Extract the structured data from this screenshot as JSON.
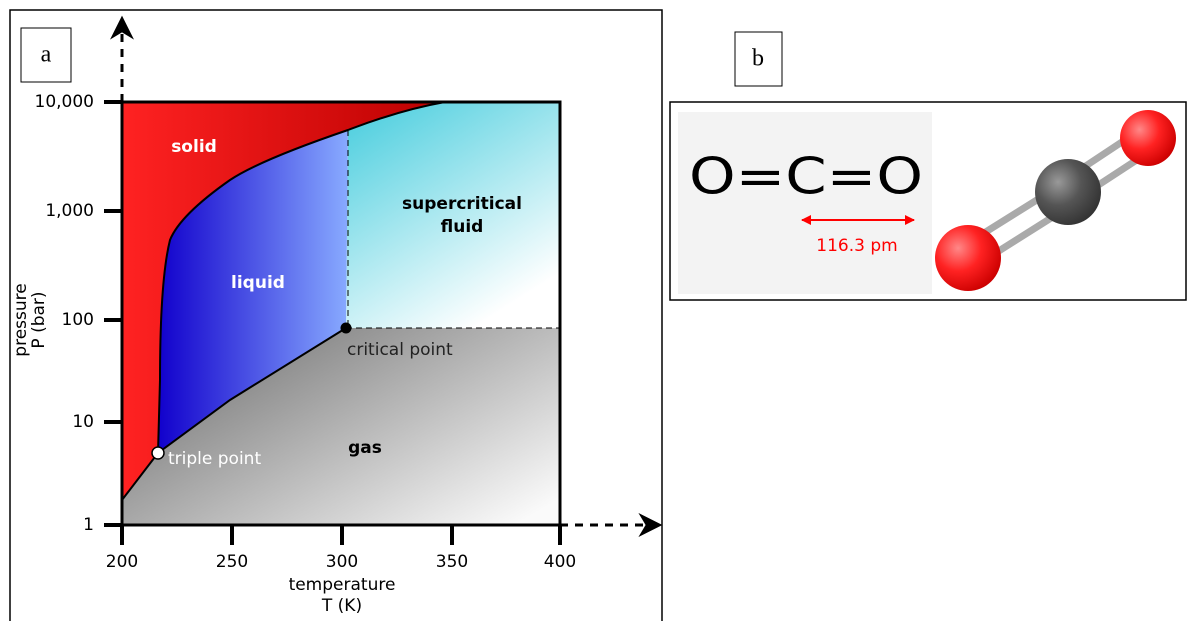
{
  "panel_a": {
    "label": "a",
    "y_axis": {
      "title": [
        "pressure",
        "P (bar)"
      ],
      "ticks": [
        "10,000",
        "1,000",
        "100",
        "10",
        "1"
      ]
    },
    "x_axis": {
      "title": [
        "temperature",
        "T (K)"
      ],
      "ticks": [
        "200",
        "250",
        "300",
        "350",
        "400"
      ]
    },
    "regions": {
      "solid": "solid",
      "liquid": "liquid",
      "supercritical": [
        "supercritical",
        "fluid"
      ],
      "gas": "gas"
    },
    "points": {
      "critical": "critical point",
      "triple": "triple point"
    }
  },
  "panel_b": {
    "label": "b",
    "formula": "O=C=O",
    "bond_length": "116.3 pm"
  }
}
